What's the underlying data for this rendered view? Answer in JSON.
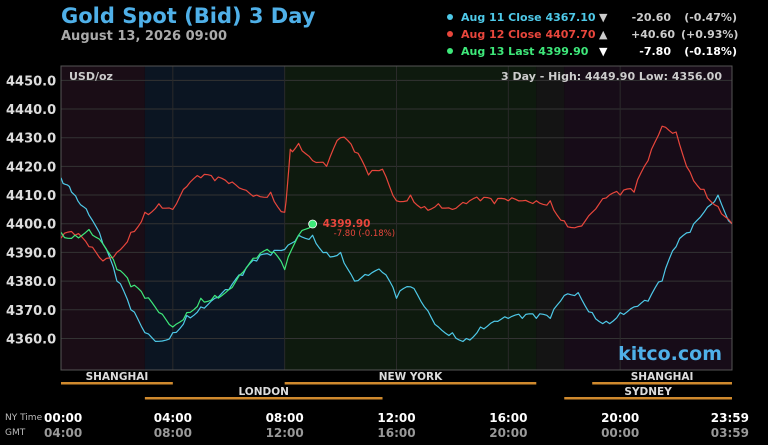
{
  "header": {
    "title": "Gold Spot (Bid) 3 Day",
    "date": "August 13, 2026 09:00"
  },
  "legend": [
    {
      "label": "Aug 11 Close",
      "value": "4367.10",
      "arrow": "▼",
      "change": "-20.60",
      "percent": "(-0.47%)",
      "color": "#4ec9e8"
    },
    {
      "label": "Aug 12 Close",
      "value": "4407.70",
      "arrow": "▲",
      "change": "+40.60",
      "percent": "(+0.93%)",
      "color": "#e8463c"
    },
    {
      "label": "Aug 13 Last",
      "value": "4399.90",
      "arrow": "▼",
      "change": "-7.80",
      "percent": "(-0.18%)",
      "color": "#3ee87a"
    }
  ],
  "chart_data": {
    "type": "line",
    "unit_label": "USD/oz",
    "range_text": "3 Day - High: 4449.90   Low: 4356.00",
    "ylim": [
      4349,
      4455
    ],
    "y_ticks": [
      "4360.0",
      "4370.0",
      "4380.0",
      "4390.0",
      "4400.0",
      "4410.0",
      "4420.0",
      "4430.0",
      "4440.0",
      "4450.0"
    ],
    "xlim": [
      0,
      24
    ],
    "x_ticks_ny": [
      "00:00",
      "04:00",
      "08:00",
      "12:00",
      "16:00",
      "20:00",
      "23:59"
    ],
    "x_ticks_gmt": [
      "04:00",
      "08:00",
      "12:00",
      "16:00",
      "20:00",
      "00:00",
      "03:59"
    ],
    "row_labels": [
      "NY Time",
      "GMT"
    ],
    "grid": true,
    "sessions": [
      {
        "name": "SHANGHAI",
        "start": 0,
        "end": 4
      },
      {
        "name": "LONDON",
        "start": 3,
        "end": 11.5
      },
      {
        "name": "NEW YORK",
        "start": 8,
        "end": 17
      },
      {
        "name": "SHANGHAI",
        "start": 19,
        "end": 24
      },
      {
        "name": "SYDNEY",
        "start": 18,
        "end": 24
      }
    ],
    "series": [
      {
        "name": "Aug 11 Close",
        "color": "#4ec9e8",
        "x": [
          0,
          0.3,
          0.6,
          1,
          1.5,
          2,
          2.5,
          3,
          3.5,
          4,
          4.5,
          5,
          5.5,
          6,
          6.5,
          7,
          7.5,
          8,
          8.5,
          9,
          9.5,
          10,
          10.5,
          11,
          11.5,
          12,
          12.5,
          13,
          13.5,
          14,
          14.5,
          15,
          15.5,
          16,
          16.5,
          17,
          17.5,
          18,
          18.5,
          19,
          19.5,
          20,
          20.5,
          21,
          21.5,
          22,
          22.5,
          23,
          23.5,
          24
        ],
        "y": [
          4416,
          4413,
          4408,
          4403,
          4393,
          4380,
          4370,
          4362,
          4359,
          4362,
          4368,
          4371,
          4374,
          4377,
          4382,
          4387,
          4389,
          4391,
          4396,
          4396,
          4390,
          4390,
          4380,
          4382,
          4383,
          4374,
          4378,
          4371,
          4364,
          4362,
          4360,
          4364,
          4366,
          4367,
          4367,
          4367,
          4367,
          4375,
          4376,
          4369,
          4366,
          4369,
          4371,
          4373,
          4380,
          4392,
          4397,
          4404,
          4410,
          4400
        ]
      },
      {
        "name": "Aug 12 Close",
        "color": "#e8463c",
        "x": [
          0,
          0.5,
          1,
          1.5,
          2,
          2.5,
          3,
          3.5,
          4,
          4.5,
          5,
          5.5,
          6,
          6.5,
          7,
          7.5,
          8,
          8.2,
          8.5,
          9,
          9.5,
          10,
          10.5,
          11,
          11.5,
          12,
          12.5,
          13,
          13.5,
          14,
          14.5,
          15,
          15.5,
          16,
          16.5,
          17,
          17.5,
          18,
          18.5,
          19,
          19.5,
          20,
          20.5,
          21,
          21.5,
          22,
          22.5,
          23,
          23.5,
          24
        ],
        "y": [
          4395,
          4396,
          4392,
          4387,
          4390,
          4397,
          4404,
          4407,
          4405,
          4413,
          4416,
          4415,
          4414,
          4412,
          4410,
          4411,
          4404,
          4426,
          4428,
          4422,
          4420,
          4430,
          4425,
          4417,
          4419,
          4408,
          4410,
          4406,
          4407,
          4405,
          4407,
          4408,
          4407,
          4408,
          4408,
          4408,
          4408,
          4401,
          4399,
          4404,
          4409,
          4410,
          4411,
          4422,
          4434,
          4432,
          4418,
          4412,
          4406,
          4400
        ]
      },
      {
        "name": "Aug 13 Last",
        "color": "#3ee87a",
        "x": [
          0,
          0.5,
          1,
          1.5,
          2,
          2.5,
          3,
          3.5,
          4,
          4.5,
          5,
          5.5,
          6,
          6.5,
          7,
          7.5,
          8,
          8.5,
          9
        ],
        "y": [
          4397,
          4396,
          4398,
          4393,
          4384,
          4378,
          4374,
          4369,
          4364,
          4369,
          4374,
          4375,
          4377,
          4383,
          4388,
          4390,
          4384,
          4396,
          4399.9
        ]
      }
    ],
    "last_point": {
      "x": 9,
      "y": 4399.9,
      "label": "4399.90",
      "change_label": "-7.80 (-0.18%)"
    },
    "watermark": "kitco.com"
  }
}
